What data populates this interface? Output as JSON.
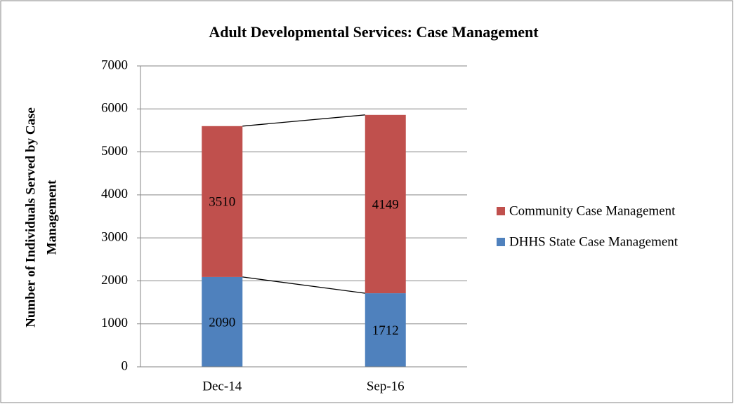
{
  "chart_data": {
    "type": "stacked_bar",
    "title": "Adult Developmental Services: Case Management",
    "y_label": [
      "Number of Individuals Served by Case",
      "Management"
    ],
    "categories": [
      "Dec-14",
      "Sep-16"
    ],
    "series": [
      {
        "name": "DHHS State Case Management",
        "color": "#4f81bd",
        "values": [
          2090,
          1712
        ]
      },
      {
        "name": "Community Case Management",
        "color": "#c0504d",
        "values": [
          3510,
          4149
        ]
      }
    ],
    "ylim": [
      0,
      7000
    ],
    "yticks": [
      0,
      1000,
      2000,
      3000,
      4000,
      5000,
      6000,
      7000
    ],
    "grid": true,
    "legend": "right",
    "series_lines": true
  }
}
